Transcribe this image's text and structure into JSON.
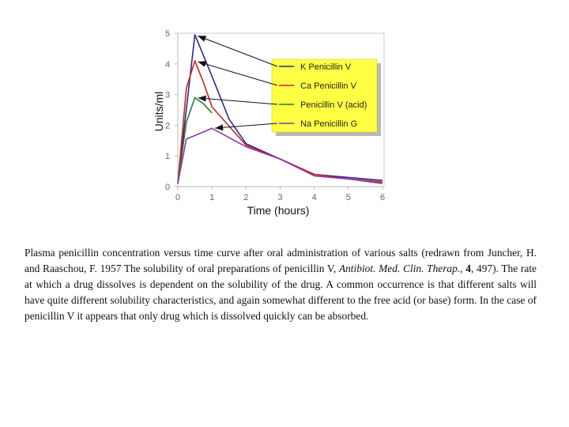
{
  "chart_data": {
    "type": "line",
    "xlabel": "Time (hours)",
    "ylabel": "Units/ml",
    "xlim": [
      0,
      6
    ],
    "ylim": [
      0,
      5
    ],
    "x_ticks": [
      "0",
      "1",
      "2",
      "3",
      "4",
      "5",
      "6"
    ],
    "y_ticks": [
      "0",
      "1",
      "2",
      "3",
      "4",
      "5"
    ],
    "grid": false,
    "legend_position": "top-right",
    "series": [
      {
        "name": "K Penicillin V",
        "color": "#2b2b8f",
        "x": [
          0,
          0.5,
          1,
          1.5,
          2,
          3,
          4,
          5,
          6
        ],
        "y": [
          0.1,
          4.95,
          3.6,
          2.2,
          1.4,
          0.9,
          0.4,
          0.3,
          0.2
        ]
      },
      {
        "name": "Ca Penicillin V",
        "color": "#cc2222",
        "x": [
          0,
          0.25,
          0.5,
          0.75,
          1,
          2,
          3,
          4,
          5,
          6
        ],
        "y": [
          0.1,
          3.2,
          4.1,
          3.4,
          2.6,
          1.35,
          0.9,
          0.4,
          0.25,
          0.15
        ]
      },
      {
        "name": "Penicillin V (acid)",
        "color": "#2a7a2a",
        "x": [
          0,
          0.25,
          0.5,
          0.75,
          1
        ],
        "y": [
          0.1,
          2.1,
          2.9,
          2.7,
          2.4
        ]
      },
      {
        "name": "Na Penicillin G",
        "color": "#8a3aa6",
        "x": [
          0,
          0.25,
          1,
          2,
          3,
          4,
          5,
          6
        ],
        "y": [
          0.1,
          1.55,
          1.9,
          1.3,
          0.9,
          0.35,
          0.25,
          0.1
        ]
      }
    ]
  },
  "caption": {
    "text_1": "Plasma penicillin concentration versus time curve after oral administration of various salts (redrawn from Juncher, H. and Raaschou, F. 1957 The solubility of oral preparations of penicillin V, ",
    "journal": "Antibiot. Med. Clin. Therap.",
    "text_2": ", ",
    "volume": "4",
    "text_3": ", 497). The rate at which a drug dissolves is dependent on the solubility of the drug. A common occurrence is that different salts will have quite different solubility characteristics, and again somewhat different to the free acid (or base) form. In the case of penicillin V it appears that only drug which is dissolved quickly can be absorbed."
  },
  "colors": {
    "legend_bg": "#ffff44",
    "legend_shadow": "#b8b8b8",
    "arrow": "#111111"
  }
}
